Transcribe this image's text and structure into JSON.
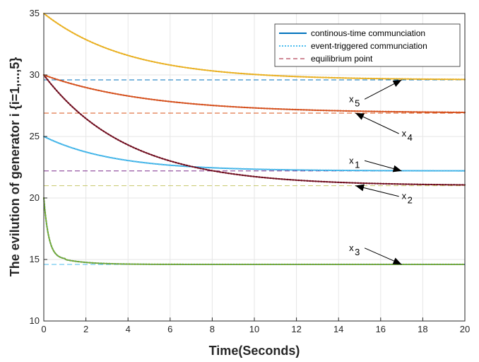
{
  "chart_data": {
    "type": "line",
    "xlabel": "Time(Seconds)",
    "ylabel": "The evilution of generator i  {i=1,...,5}",
    "xlim": [
      0,
      20
    ],
    "ylim": [
      10,
      35
    ],
    "xticks": [
      0,
      2,
      4,
      6,
      8,
      10,
      12,
      14,
      16,
      18,
      20
    ],
    "yticks": [
      10,
      15,
      20,
      25,
      30,
      35
    ],
    "grid": true,
    "legend_position": "top-right",
    "legend": [
      {
        "label": "continous-time communciation",
        "style": "solid",
        "color": "#0072BD"
      },
      {
        "label": "event-triggered communciation",
        "style": "dotted",
        "color": "#4DBEEE"
      },
      {
        "label": "equilibrium point",
        "style": "dashed",
        "color": "#A2142F"
      }
    ],
    "series": [
      {
        "id": "x1",
        "x0": 25.0,
        "equilibrium": 22.2,
        "rate": 0.3,
        "color": "#0072BD",
        "event_color": "#4DBEEE",
        "eq_color": "#7E2F8E"
      },
      {
        "id": "x2",
        "x0": 30.0,
        "equilibrium": 21.0,
        "rate": 0.25,
        "color": "#A2142F",
        "event_color": "#6B0F1F",
        "eq_color": "#C7C76A"
      },
      {
        "id": "x3",
        "x0": 20.0,
        "equilibrium": 14.6,
        "plateau": 15.0,
        "plateau_until": 1.0,
        "color": "#1F6FB0",
        "event_color": "#77AC30",
        "eq_color": "#4DBEEE"
      },
      {
        "id": "x4",
        "x0": 30.0,
        "equilibrium": 26.9,
        "rate": 0.2,
        "color": "#B23A3A",
        "event_color": "#D95319",
        "eq_color": "#D95319"
      },
      {
        "id": "x5",
        "x0": 35.0,
        "equilibrium": 29.6,
        "rate": 0.25,
        "color": "#C8A52A",
        "event_color": "#EDB120",
        "eq_color": "#0072BD"
      }
    ],
    "annotations": [
      {
        "label": "x",
        "sub": "1",
        "text_xy": [
          14.5,
          22.8
        ],
        "arrow_to": [
          17.0,
          22.2
        ]
      },
      {
        "label": "x",
        "sub": "2",
        "text_xy": [
          17.0,
          19.9
        ],
        "arrow_to": [
          14.8,
          21.0
        ]
      },
      {
        "label": "x",
        "sub": "3",
        "text_xy": [
          14.5,
          15.7
        ],
        "arrow_to": [
          17.0,
          14.6
        ]
      },
      {
        "label": "x",
        "sub": "4",
        "text_xy": [
          17.0,
          25.0
        ],
        "arrow_to": [
          14.8,
          26.9
        ]
      },
      {
        "label": "x",
        "sub": "5",
        "text_xy": [
          14.5,
          27.8
        ],
        "arrow_to": [
          17.0,
          29.6
        ]
      }
    ]
  }
}
